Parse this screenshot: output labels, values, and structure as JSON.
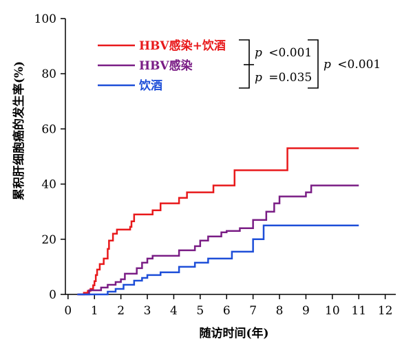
{
  "chart_data": {
    "type": "line",
    "step": true,
    "xlabel": "随访时间(年)",
    "ylabel": "累积肝细胞癌的发生率(%)",
    "xlim": [
      -0.1,
      12.4
    ],
    "ylim": [
      0,
      100
    ],
    "x_ticks": [
      0,
      1,
      2,
      3,
      4,
      5,
      6,
      7,
      8,
      9,
      10,
      11,
      12
    ],
    "y_ticks": [
      0,
      20,
      40,
      60,
      80,
      100
    ],
    "grid": false,
    "legend_position": "top-left",
    "series": [
      {
        "name": "HBV感染+饮酒",
        "color": "#e8191b",
        "points": [
          [
            0.35,
            0
          ],
          [
            0.6,
            0.6
          ],
          [
            0.75,
            1.3
          ],
          [
            0.85,
            2
          ],
          [
            0.95,
            3.3
          ],
          [
            1.0,
            4.8
          ],
          [
            1.05,
            7
          ],
          [
            1.1,
            9
          ],
          [
            1.2,
            11
          ],
          [
            1.35,
            13
          ],
          [
            1.5,
            16.5
          ],
          [
            1.55,
            19.5
          ],
          [
            1.7,
            22
          ],
          [
            1.85,
            23.5
          ],
          [
            2.35,
            24.5
          ],
          [
            2.4,
            26.5
          ],
          [
            2.5,
            29
          ],
          [
            3.2,
            30.5
          ],
          [
            3.5,
            33
          ],
          [
            4.2,
            35
          ],
          [
            4.5,
            37
          ],
          [
            5.5,
            39.5
          ],
          [
            6.3,
            45
          ],
          [
            8.3,
            53
          ],
          [
            11.0,
            53
          ]
        ]
      },
      {
        "name": "HBV感染",
        "color": "#7a1d85",
        "points": [
          [
            0.4,
            0
          ],
          [
            0.8,
            1.5
          ],
          [
            1.25,
            2.5
          ],
          [
            1.5,
            3.5
          ],
          [
            1.8,
            4.5
          ],
          [
            2.0,
            5.5
          ],
          [
            2.15,
            7.5
          ],
          [
            2.6,
            9.5
          ],
          [
            2.8,
            11.5
          ],
          [
            3.0,
            13
          ],
          [
            3.2,
            14
          ],
          [
            4.2,
            16
          ],
          [
            4.8,
            17.5
          ],
          [
            5.0,
            19.5
          ],
          [
            5.3,
            21
          ],
          [
            5.8,
            22.5
          ],
          [
            6.0,
            23
          ],
          [
            6.5,
            24
          ],
          [
            7.0,
            27
          ],
          [
            7.5,
            30
          ],
          [
            7.8,
            33
          ],
          [
            8.0,
            35.5
          ],
          [
            9.0,
            37
          ],
          [
            9.2,
            39.5
          ],
          [
            11.0,
            39.5
          ]
        ]
      },
      {
        "name": "饮酒",
        "color": "#1d4ed8",
        "points": [
          [
            0.35,
            0
          ],
          [
            1.5,
            1
          ],
          [
            1.8,
            2
          ],
          [
            2.1,
            3.5
          ],
          [
            2.5,
            5
          ],
          [
            2.8,
            6
          ],
          [
            3.0,
            7
          ],
          [
            3.5,
            8
          ],
          [
            4.2,
            10
          ],
          [
            4.8,
            11.5
          ],
          [
            5.3,
            13
          ],
          [
            6.2,
            15.5
          ],
          [
            7.0,
            20
          ],
          [
            7.4,
            25
          ],
          [
            11.0,
            25
          ]
        ]
      }
    ],
    "annotations": {
      "p1": {
        "symbol": "p",
        "text": "<0.001"
      },
      "p2": {
        "symbol": "p",
        "text": "=0.035"
      },
      "p3": {
        "symbol": "p",
        "text": "<0.001"
      }
    }
  }
}
